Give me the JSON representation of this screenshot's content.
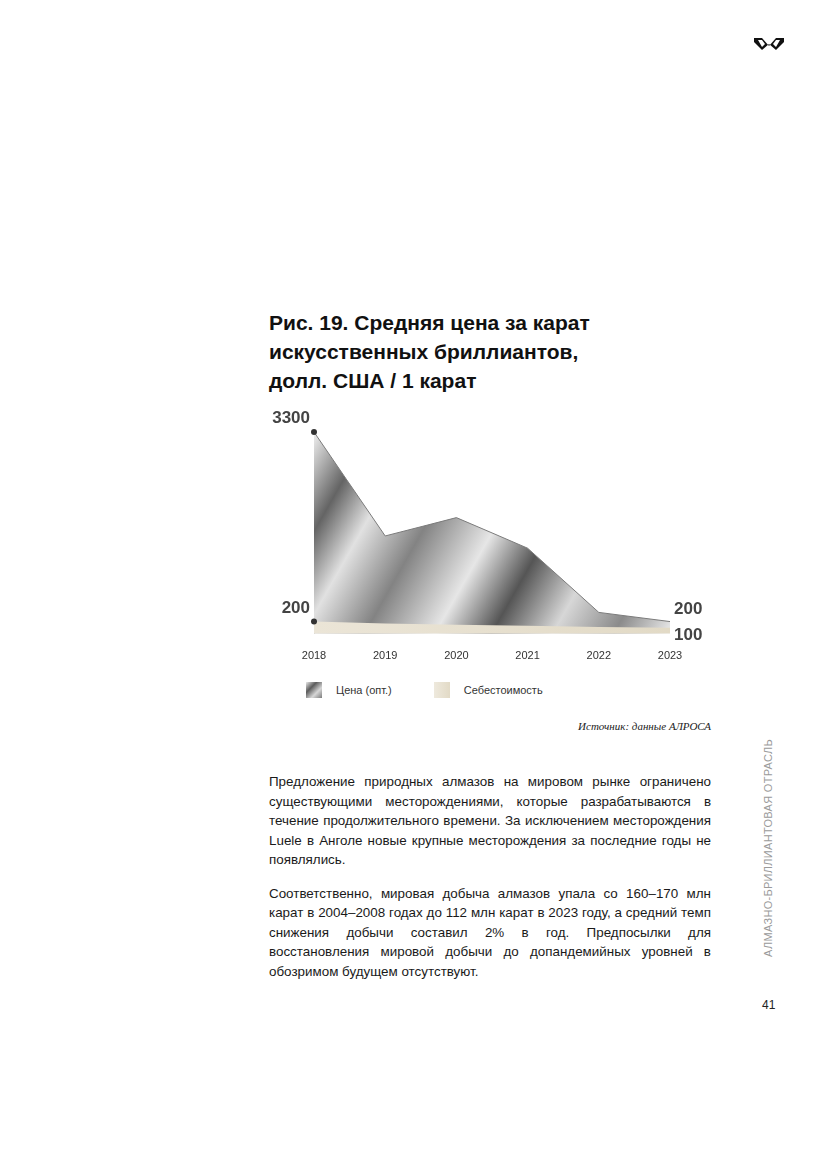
{
  "page": {
    "source": "Источник: данные АЛРОСА",
    "paragraphs": [
      "Предложение природных алмазов на мировом рынке ограничено существующими месторождениями, которые разрабатываются в течение продолжительного времени. За исключением месторождения Luele в Анголе новые крупные месторождения за последние годы не появлялись.",
      "Соответственно, мировая добыча алмазов упала со 160–170 млн карат в 2004–2008 годах до 112 млн карат в 2023 году, а средний темп снижения добычи составил 2% в год. Предпосылки для восстановления мировой добычи до допандемийных уровней в обозримом будущем отсутствуют."
    ],
    "side_text": "АЛМАЗНО-БРИЛЛИАНТОВАЯ ОТРАСЛЬ",
    "page_number": "41"
  },
  "chart_data": {
    "type": "area",
    "title": "Рис. 19. Средняя цена за карат\nискусственных бриллиантов,\nдолл. США / 1 карат",
    "categories": [
      "2018",
      "2019",
      "2020",
      "2021",
      "2022",
      "2023"
    ],
    "series": [
      {
        "name": "Цена (опт.)",
        "color": "#9a9a9a",
        "values": [
          3300,
          1600,
          1900,
          1400,
          350,
          200
        ],
        "value_labels": [
          "3300",
          null,
          null,
          null,
          null,
          "200"
        ]
      },
      {
        "name": "Себестоимость",
        "color": "#e2dac6",
        "values": [
          200,
          170,
          150,
          130,
          110,
          100
        ],
        "value_labels": [
          "200",
          null,
          null,
          null,
          null,
          "100"
        ]
      }
    ],
    "ylim": [
      0,
      3300
    ],
    "yticks": [],
    "grid": false,
    "legend": "bottom",
    "data_labels": true,
    "tick_labels": "x"
  }
}
